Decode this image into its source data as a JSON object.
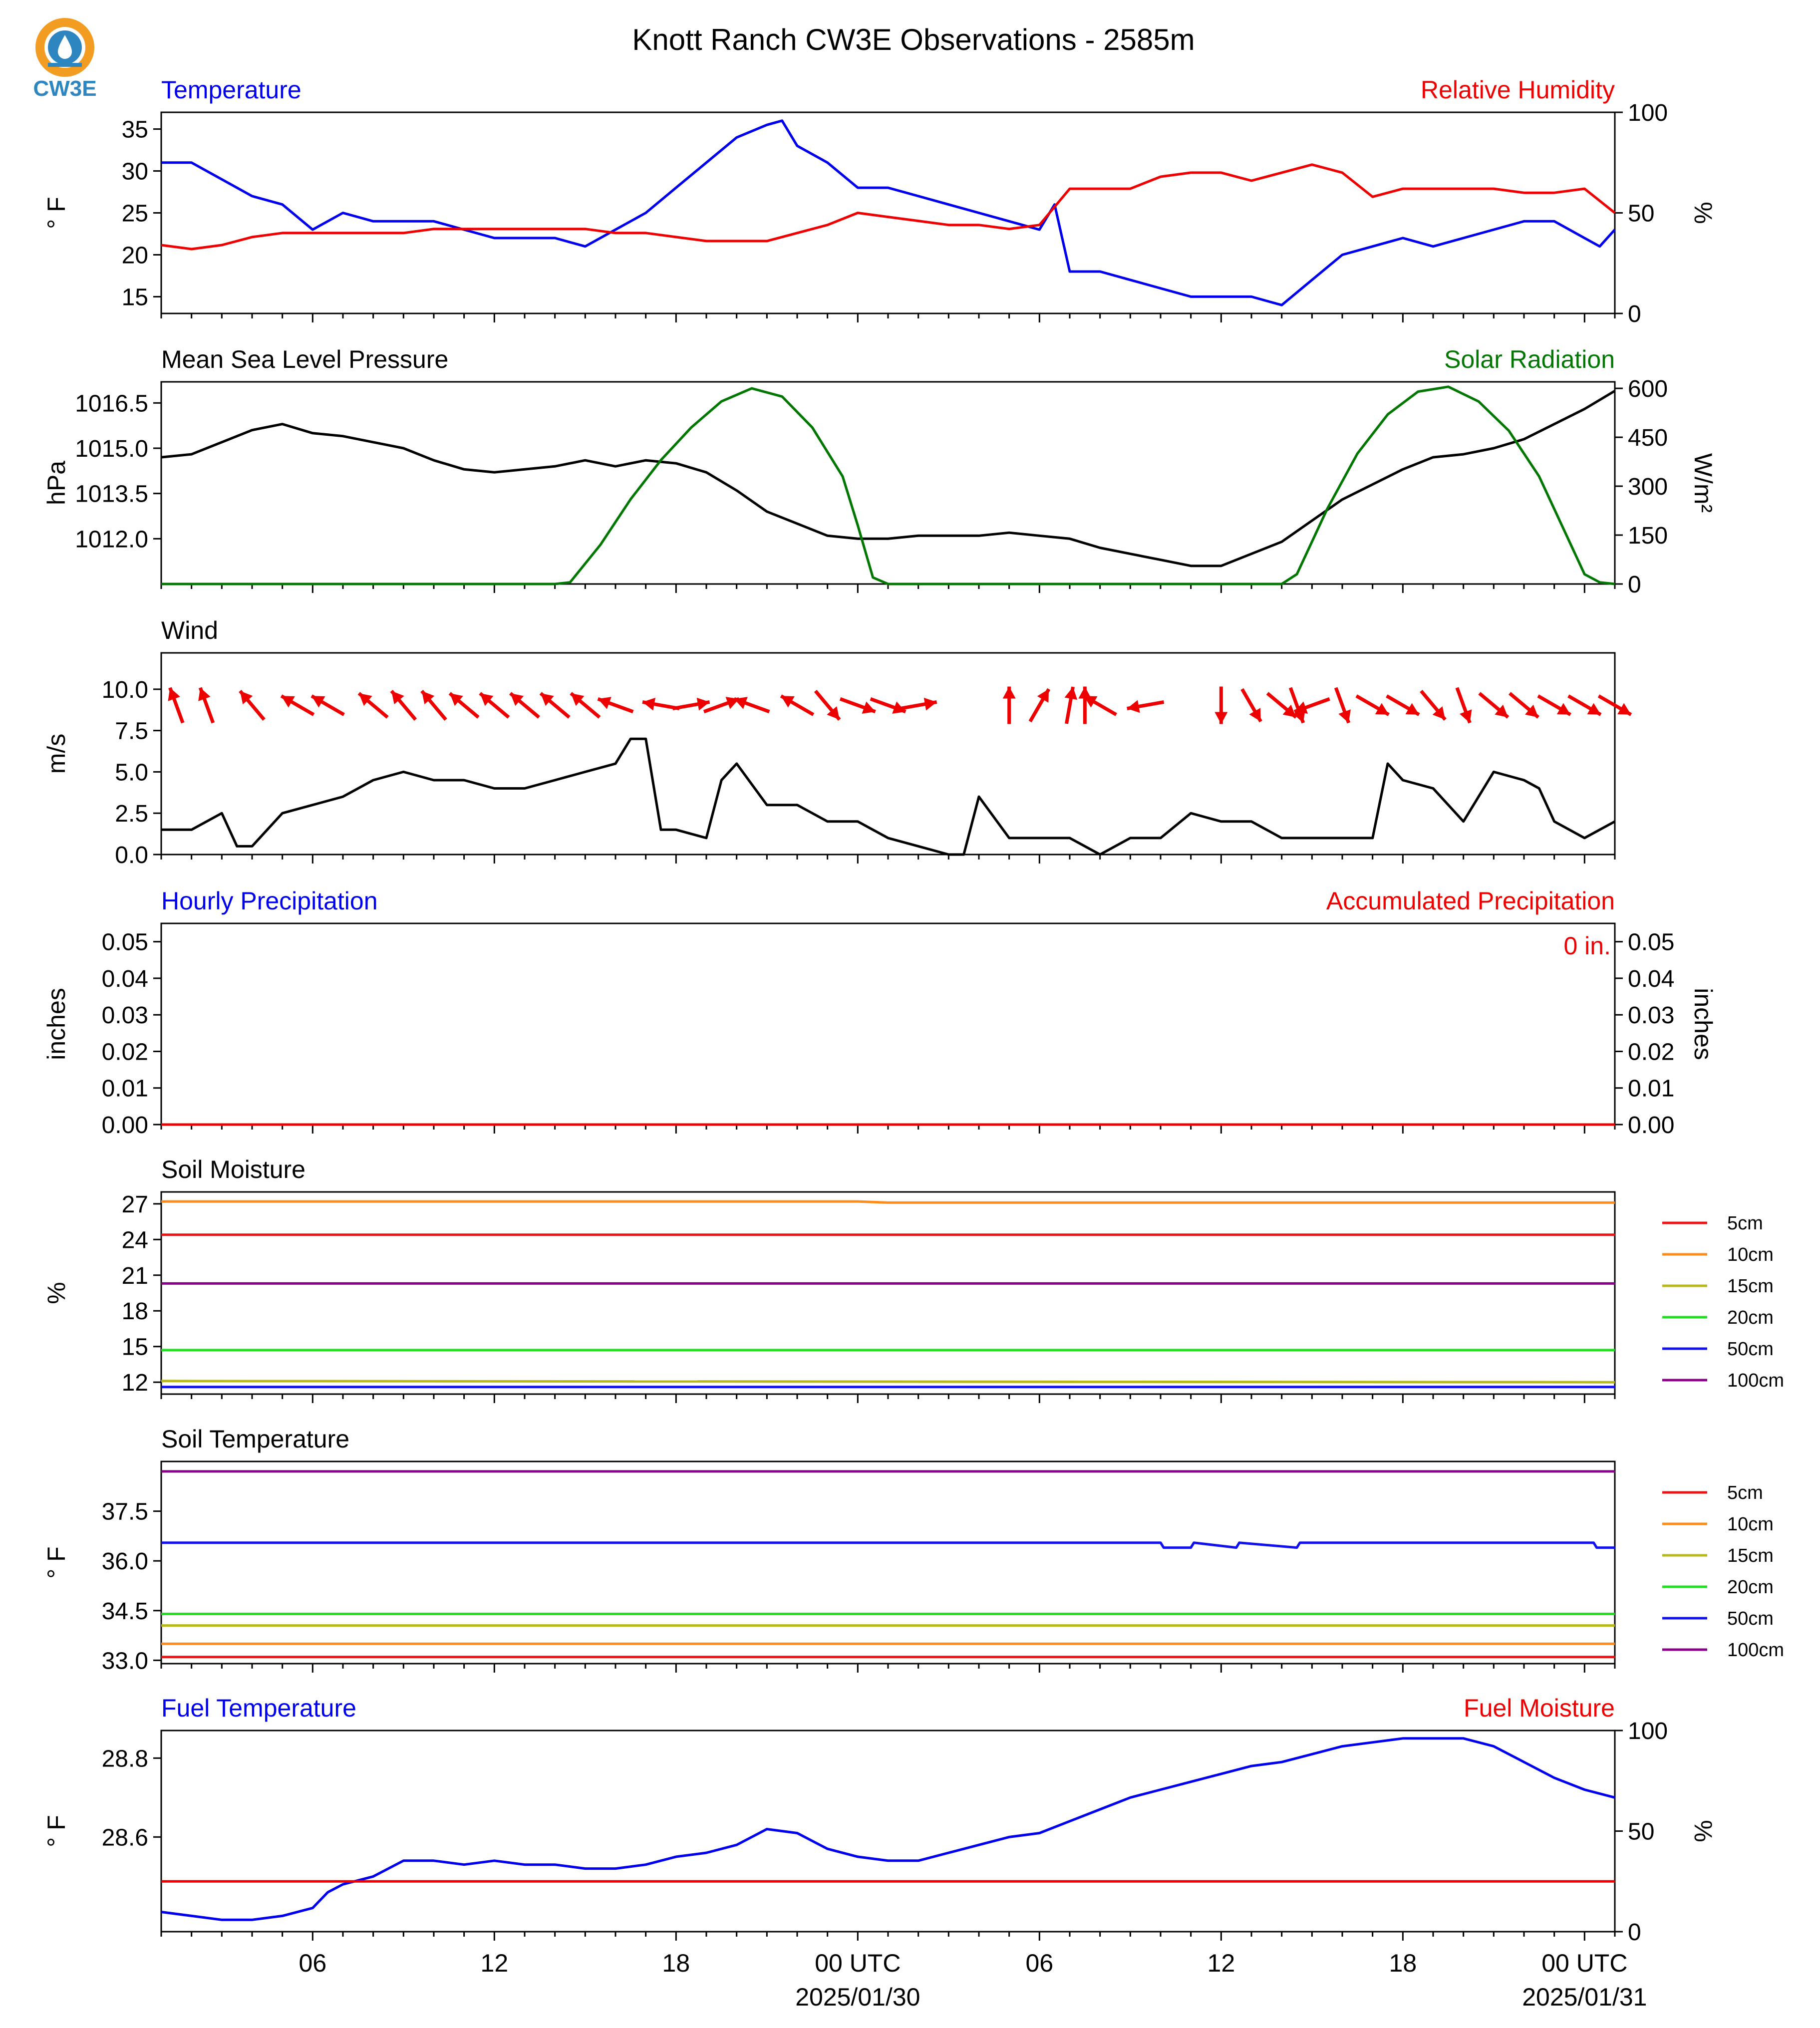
{
  "page": {
    "title": "Knott Ranch CW3E Observations - 2585m",
    "logo_text": "CW3E"
  },
  "colors": {
    "blue": "#0000ee",
    "red": "#ee0000",
    "green": "#007700",
    "black": "#000000",
    "logo_orange": "#f39c22",
    "logo_blue": "#2e86c1"
  },
  "time_axis": {
    "start_hour": 0,
    "end_hour": 48,
    "tick_labels": [
      {
        "hour": 5,
        "label": "06"
      },
      {
        "hour": 11,
        "label": "12"
      },
      {
        "hour": 17,
        "label": "18"
      },
      {
        "hour": 23,
        "label": "00 UTC",
        "sub": "2025/01/30"
      },
      {
        "hour": 29,
        "label": "06"
      },
      {
        "hour": 35,
        "label": "12"
      },
      {
        "hour": 41,
        "label": "18"
      },
      {
        "hour": 47,
        "label": "00 UTC",
        "sub": "2025/01/31"
      }
    ]
  },
  "chart_data": [
    {
      "type": "line",
      "left_title": "Temperature",
      "right_title": "Relative Humidity",
      "ylabel": "° F",
      "y2label": "%",
      "ylim": [
        13,
        37
      ],
      "yticks": [
        15,
        20,
        25,
        30,
        35
      ],
      "y2lim": [
        0,
        100
      ],
      "y2ticks": [
        0,
        50,
        100
      ],
      "series": [
        {
          "name": "",
          "axis": "left",
          "color": "#0000ee",
          "x": [
            0,
            1,
            2,
            3,
            4,
            5,
            6,
            7,
            8,
            9,
            10,
            11,
            12,
            13,
            14,
            15,
            16,
            17,
            18,
            19,
            20,
            20.5,
            21,
            22,
            23,
            24,
            25,
            26,
            27,
            28,
            29,
            29.5,
            30,
            31,
            32,
            33,
            34,
            35,
            36,
            37,
            38,
            39,
            40,
            41,
            42,
            43,
            44,
            45,
            46,
            47,
            47.5,
            48
          ],
          "y": [
            31,
            31,
            29,
            27,
            26,
            23,
            25,
            24,
            24,
            24,
            23,
            22,
            22,
            22,
            21,
            23,
            25,
            28,
            31,
            34,
            35.5,
            36,
            33,
            31,
            28,
            28,
            27,
            26,
            25,
            24,
            23,
            26,
            18,
            18,
            17,
            16,
            15,
            15,
            15,
            14,
            17,
            20,
            21,
            22,
            21,
            22,
            23,
            24,
            24,
            22,
            21,
            23
          ]
        },
        {
          "name": "",
          "axis": "right",
          "color": "#ee0000",
          "x": [
            0,
            1,
            2,
            3,
            4,
            5,
            6,
            7,
            8,
            9,
            10,
            11,
            12,
            13,
            14,
            15,
            16,
            17,
            18,
            19,
            20,
            21,
            22,
            23,
            24,
            25,
            26,
            27,
            28,
            29,
            30,
            31,
            32,
            33,
            34,
            35,
            36,
            37,
            38,
            39,
            40,
            41,
            42,
            43,
            44,
            45,
            46,
            47,
            48
          ],
          "y": [
            34,
            32,
            34,
            38,
            40,
            40,
            40,
            40,
            40,
            42,
            42,
            42,
            42,
            42,
            42,
            40,
            40,
            38,
            36,
            36,
            36,
            40,
            44,
            50,
            48,
            46,
            44,
            44,
            42,
            44,
            62,
            62,
            62,
            68,
            70,
            70,
            66,
            70,
            74,
            70,
            58,
            62,
            62,
            62,
            62,
            60,
            60,
            62,
            50
          ]
        }
      ]
    },
    {
      "type": "line",
      "left_title": "Mean Sea Level Pressure",
      "right_title": "Solar Radiation",
      "ylabel": "hPa",
      "y2label": "W/m²",
      "ylim": [
        1010.5,
        1017.2
      ],
      "yticks": [
        1012.0,
        1013.5,
        1015.0,
        1016.5
      ],
      "yticklabels": [
        "1012.0",
        "1013.5",
        "1015.0",
        "1016.5"
      ],
      "y2lim": [
        0,
        620
      ],
      "y2ticks": [
        0,
        150,
        300,
        450,
        600
      ],
      "series": [
        {
          "name": "",
          "axis": "left",
          "color": "#000000",
          "x": [
            0,
            1,
            2,
            3,
            4,
            5,
            6,
            7,
            8,
            9,
            10,
            11,
            12,
            13,
            14,
            15,
            16,
            17,
            18,
            19,
            20,
            21,
            22,
            23,
            24,
            25,
            26,
            27,
            28,
            29,
            30,
            31,
            32,
            33,
            34,
            35,
            36,
            37,
            38,
            39,
            40,
            41,
            42,
            43,
            44,
            45,
            46,
            47,
            48
          ],
          "y": [
            1014.7,
            1014.8,
            1015.2,
            1015.6,
            1015.8,
            1015.5,
            1015.4,
            1015.2,
            1015.0,
            1014.6,
            1014.3,
            1014.2,
            1014.3,
            1014.4,
            1014.6,
            1014.4,
            1014.6,
            1014.5,
            1014.2,
            1013.6,
            1012.9,
            1012.5,
            1012.1,
            1012.0,
            1012.0,
            1012.1,
            1012.1,
            1012.1,
            1012.2,
            1012.1,
            1012.0,
            1011.7,
            1011.5,
            1011.3,
            1011.1,
            1011.1,
            1011.5,
            1011.9,
            1012.6,
            1013.3,
            1013.8,
            1014.3,
            1014.7,
            1014.8,
            1015.0,
            1015.3,
            1015.8,
            1016.3,
            1016.9
          ]
        },
        {
          "name": "",
          "axis": "right",
          "color": "#007700",
          "x": [
            0,
            12,
            13,
            13.5,
            14.5,
            15.5,
            16.5,
            17.5,
            18.5,
            19.5,
            20.5,
            21.5,
            22.5,
            23,
            23.5,
            24,
            36,
            37,
            37.5,
            38.5,
            39.5,
            40.5,
            41.5,
            42.5,
            43.5,
            44.5,
            45.5,
            46.5,
            47,
            47.5,
            48
          ],
          "y": [
            0,
            0,
            0,
            5,
            120,
            260,
            380,
            480,
            560,
            600,
            575,
            480,
            330,
            180,
            20,
            0,
            0,
            0,
            30,
            230,
            400,
            520,
            590,
            605,
            560,
            470,
            330,
            130,
            30,
            5,
            0
          ]
        }
      ]
    },
    {
      "type": "line",
      "left_title": "Wind",
      "ylabel": "m/s",
      "ylim": [
        0,
        12.2
      ],
      "yticks": [
        0.0,
        2.5,
        5.0,
        7.5,
        10.0
      ],
      "yticklabels": [
        "0.0",
        "2.5",
        "5.0",
        "7.5",
        "10.0"
      ],
      "series": [
        {
          "name": "",
          "color": "#000000",
          "x": [
            0,
            1,
            2,
            2.5,
            3,
            4,
            5,
            6,
            7,
            8,
            9,
            10,
            11,
            12,
            13,
            14,
            15,
            15.5,
            16,
            16.5,
            17,
            18,
            18.5,
            19,
            20,
            21,
            22,
            23,
            24,
            25,
            26,
            26.5,
            27,
            28,
            29,
            30,
            31,
            32,
            33,
            34,
            35,
            36,
            37,
            38,
            39,
            40,
            40.5,
            41,
            42,
            43,
            44,
            45,
            45.5,
            46,
            47,
            48
          ],
          "y": [
            1.5,
            1.5,
            2.5,
            0.5,
            0.5,
            2.5,
            3,
            3.5,
            4.5,
            5,
            4.5,
            4.5,
            4,
            4,
            4.5,
            5,
            5.5,
            7,
            7,
            1.5,
            1.5,
            1,
            4.5,
            5.5,
            3,
            3,
            2,
            2,
            1,
            0.5,
            0,
            0,
            3.5,
            1,
            1,
            1,
            0,
            1,
            1,
            2.5,
            2,
            2,
            1,
            1,
            1,
            1,
            5.5,
            4.5,
            4,
            2,
            5,
            4.5,
            4,
            2,
            1,
            2
          ]
        }
      ],
      "wind_barbs": {
        "x": [
          0.5,
          1.5,
          3,
          4.5,
          5.5,
          7,
          8,
          9,
          10,
          11,
          12,
          13,
          14,
          15,
          16.5,
          17.5,
          18.5,
          19.5,
          21,
          22,
          23,
          24,
          25,
          28,
          29,
          30,
          30.5,
          31,
          32.5,
          35,
          36,
          37,
          37.5,
          38,
          39,
          40,
          41,
          42,
          43,
          44,
          45,
          46,
          47,
          48
        ],
        "bearing_deg": [
          340,
          340,
          320,
          300,
          300,
          310,
          320,
          320,
          310,
          310,
          310,
          310,
          310,
          290,
          280,
          80,
          70,
          290,
          300,
          140,
          110,
          110,
          80,
          0,
          30,
          10,
          0,
          300,
          260,
          180,
          150,
          130,
          160,
          250,
          160,
          120,
          120,
          140,
          160,
          130,
          130,
          120,
          120,
          120
        ],
        "speed": [
          2,
          2,
          3,
          3,
          3,
          4,
          5,
          4,
          4,
          4,
          4,
          4,
          4,
          5,
          6,
          6,
          6,
          4,
          3,
          3,
          3,
          3,
          2,
          1,
          2,
          2,
          1,
          2,
          3,
          3,
          2,
          2,
          2,
          1,
          2,
          3,
          4,
          4,
          4,
          5,
          5,
          5,
          4,
          2
        ]
      }
    },
    {
      "type": "line",
      "left_title": "Hourly Precipitation",
      "right_title": "Accumulated Precipitation",
      "ylabel": "inches",
      "y2label": "inches",
      "annotation": "0 in.",
      "ylim": [
        0,
        0.055
      ],
      "yticks": [
        0.0,
        0.01,
        0.02,
        0.03,
        0.04,
        0.05
      ],
      "yticklabels": [
        "0.00",
        "0.01",
        "0.02",
        "0.03",
        "0.04",
        "0.05"
      ],
      "y2lim": [
        0,
        0.055
      ],
      "y2ticks": [
        0.0,
        0.01,
        0.02,
        0.03,
        0.04,
        0.05
      ],
      "y2ticklabels": [
        "0.00",
        "0.01",
        "0.02",
        "0.03",
        "0.04",
        "0.05"
      ],
      "series": [
        {
          "name": "",
          "axis": "right",
          "color": "#ee0000",
          "x": [
            0,
            48
          ],
          "y": [
            0,
            0
          ]
        }
      ]
    },
    {
      "type": "line",
      "left_title": "Soil Moisture",
      "ylabel": "%",
      "ylim": [
        11,
        28
      ],
      "yticks": [
        12,
        15,
        18,
        21,
        24,
        27
      ],
      "series": [
        {
          "name": "5cm",
          "color": "#ee1111",
          "x": [
            0,
            48
          ],
          "y": [
            24.4,
            24.4
          ]
        },
        {
          "name": "10cm",
          "color": "#ff8c1a",
          "x": [
            0,
            23,
            24,
            48
          ],
          "y": [
            27.2,
            27.2,
            27.1,
            27.1
          ]
        },
        {
          "name": "15cm",
          "color": "#b8b81a",
          "x": [
            0,
            48
          ],
          "y": [
            12.1,
            12.0
          ]
        },
        {
          "name": "20cm",
          "color": "#22dd22",
          "x": [
            0,
            48
          ],
          "y": [
            14.7,
            14.7
          ]
        },
        {
          "name": "50cm",
          "color": "#1111ee",
          "x": [
            0,
            48
          ],
          "y": [
            11.6,
            11.6
          ]
        },
        {
          "name": "100cm",
          "color": "#8b008b",
          "x": [
            0,
            48
          ],
          "y": [
            20.3,
            20.3
          ]
        }
      ]
    },
    {
      "type": "line",
      "left_title": "Soil Temperature",
      "ylabel": "° F",
      "ylim": [
        32.9,
        39.0
      ],
      "yticks": [
        33.0,
        34.5,
        36.0,
        37.5
      ],
      "yticklabels": [
        "33.0",
        "34.5",
        "36.0",
        "37.5"
      ],
      "series": [
        {
          "name": "5cm",
          "color": "#ee1111",
          "x": [
            0,
            48
          ],
          "y": [
            33.1,
            33.1
          ]
        },
        {
          "name": "10cm",
          "color": "#ff8c1a",
          "x": [
            0,
            48
          ],
          "y": [
            33.5,
            33.5
          ]
        },
        {
          "name": "15cm",
          "color": "#b8b81a",
          "x": [
            0,
            48
          ],
          "y": [
            34.05,
            34.05
          ]
        },
        {
          "name": "20cm",
          "color": "#22dd22",
          "x": [
            0,
            48
          ],
          "y": [
            34.4,
            34.4
          ]
        },
        {
          "name": "50cm",
          "color": "#1111ee",
          "x": [
            0,
            33,
            33.1,
            34,
            34.1,
            35.5,
            35.6,
            37.5,
            37.6,
            47.3,
            47.4,
            48
          ],
          "y": [
            36.55,
            36.55,
            36.4,
            36.4,
            36.55,
            36.4,
            36.55,
            36.4,
            36.55,
            36.55,
            36.4,
            36.4
          ]
        },
        {
          "name": "100cm",
          "color": "#8b008b",
          "x": [
            0,
            48
          ],
          "y": [
            38.7,
            38.7
          ]
        }
      ]
    },
    {
      "type": "line",
      "left_title": "Fuel Temperature",
      "right_title": "Fuel Moisture",
      "ylabel": "° F",
      "y2label": "%",
      "ylim": [
        28.36,
        28.87
      ],
      "yticks": [
        28.6,
        28.8
      ],
      "yticklabels": [
        "28.6",
        "28.8"
      ],
      "y2lim": [
        0,
        100
      ],
      "y2ticks": [
        0,
        50,
        100
      ],
      "series": [
        {
          "name": "",
          "axis": "left",
          "color": "#0000ee",
          "x": [
            0,
            1,
            2,
            3,
            4,
            5,
            5.5,
            6,
            6.5,
            7,
            8,
            9,
            10,
            11,
            12,
            13,
            14,
            15,
            16,
            17,
            18,
            19,
            20,
            21,
            22,
            23,
            24,
            25,
            26,
            27,
            28,
            29,
            30,
            31,
            32,
            33,
            34,
            35,
            36,
            37,
            38,
            39,
            40,
            41,
            42,
            43,
            44,
            45,
            46,
            47,
            48
          ],
          "y": [
            28.41,
            28.4,
            28.39,
            28.39,
            28.4,
            28.42,
            28.46,
            28.48,
            28.49,
            28.5,
            28.54,
            28.54,
            28.53,
            28.54,
            28.53,
            28.53,
            28.52,
            28.52,
            28.53,
            28.55,
            28.56,
            28.58,
            28.62,
            28.61,
            28.57,
            28.55,
            28.54,
            28.54,
            28.56,
            28.58,
            28.6,
            28.61,
            28.64,
            28.67,
            28.7,
            28.72,
            28.74,
            28.76,
            28.78,
            28.79,
            28.81,
            28.83,
            28.84,
            28.85,
            28.85,
            28.85,
            28.83,
            28.79,
            28.75,
            28.72,
            28.7
          ]
        },
        {
          "name": "",
          "axis": "right",
          "color": "#ee0000",
          "x": [
            0,
            48
          ],
          "y": [
            25,
            25
          ]
        }
      ]
    }
  ]
}
